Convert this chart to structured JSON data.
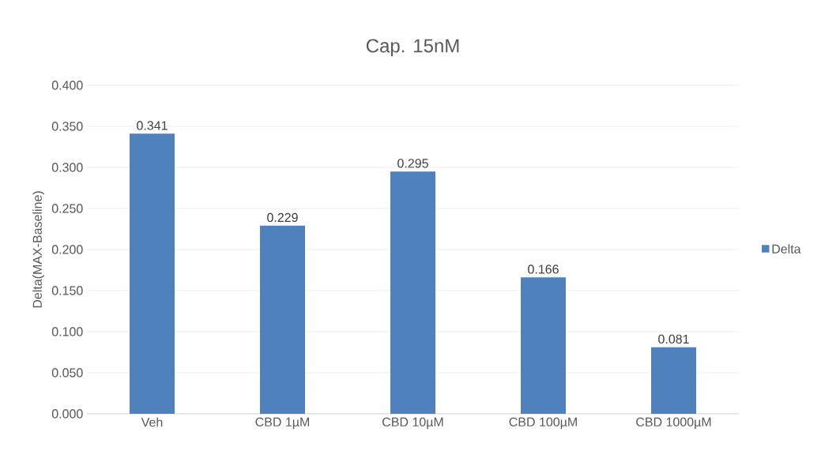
{
  "chart_data": {
    "type": "bar",
    "title": "Cap. 15nM",
    "ylabel": "Delta(MAX-Baseline)",
    "categories": [
      "Veh",
      "CBD 1µM",
      "CBD 10µM",
      "CBD 100µM",
      "CBD 1000µM"
    ],
    "series": [
      {
        "name": "Delta",
        "color": "#4f81bd",
        "values": [
          0.341,
          0.229,
          0.295,
          0.166,
          0.081
        ]
      }
    ],
    "ylim": [
      0,
      0.4
    ],
    "yticks": [
      {
        "value": 0,
        "label": "0.000"
      },
      {
        "value": 0.05,
        "label": "0.050"
      },
      {
        "value": 0.1,
        "label": "0.100"
      },
      {
        "value": 0.15,
        "label": "0.150"
      },
      {
        "value": 0.2,
        "label": "0.200"
      },
      {
        "value": 0.25,
        "label": "0.250"
      },
      {
        "value": 0.3,
        "label": "0.300"
      },
      {
        "value": 0.35,
        "label": "0.350"
      },
      {
        "value": 0.4,
        "label": "0.400"
      }
    ],
    "grid": "y",
    "legend": "right",
    "data_labels": true
  }
}
